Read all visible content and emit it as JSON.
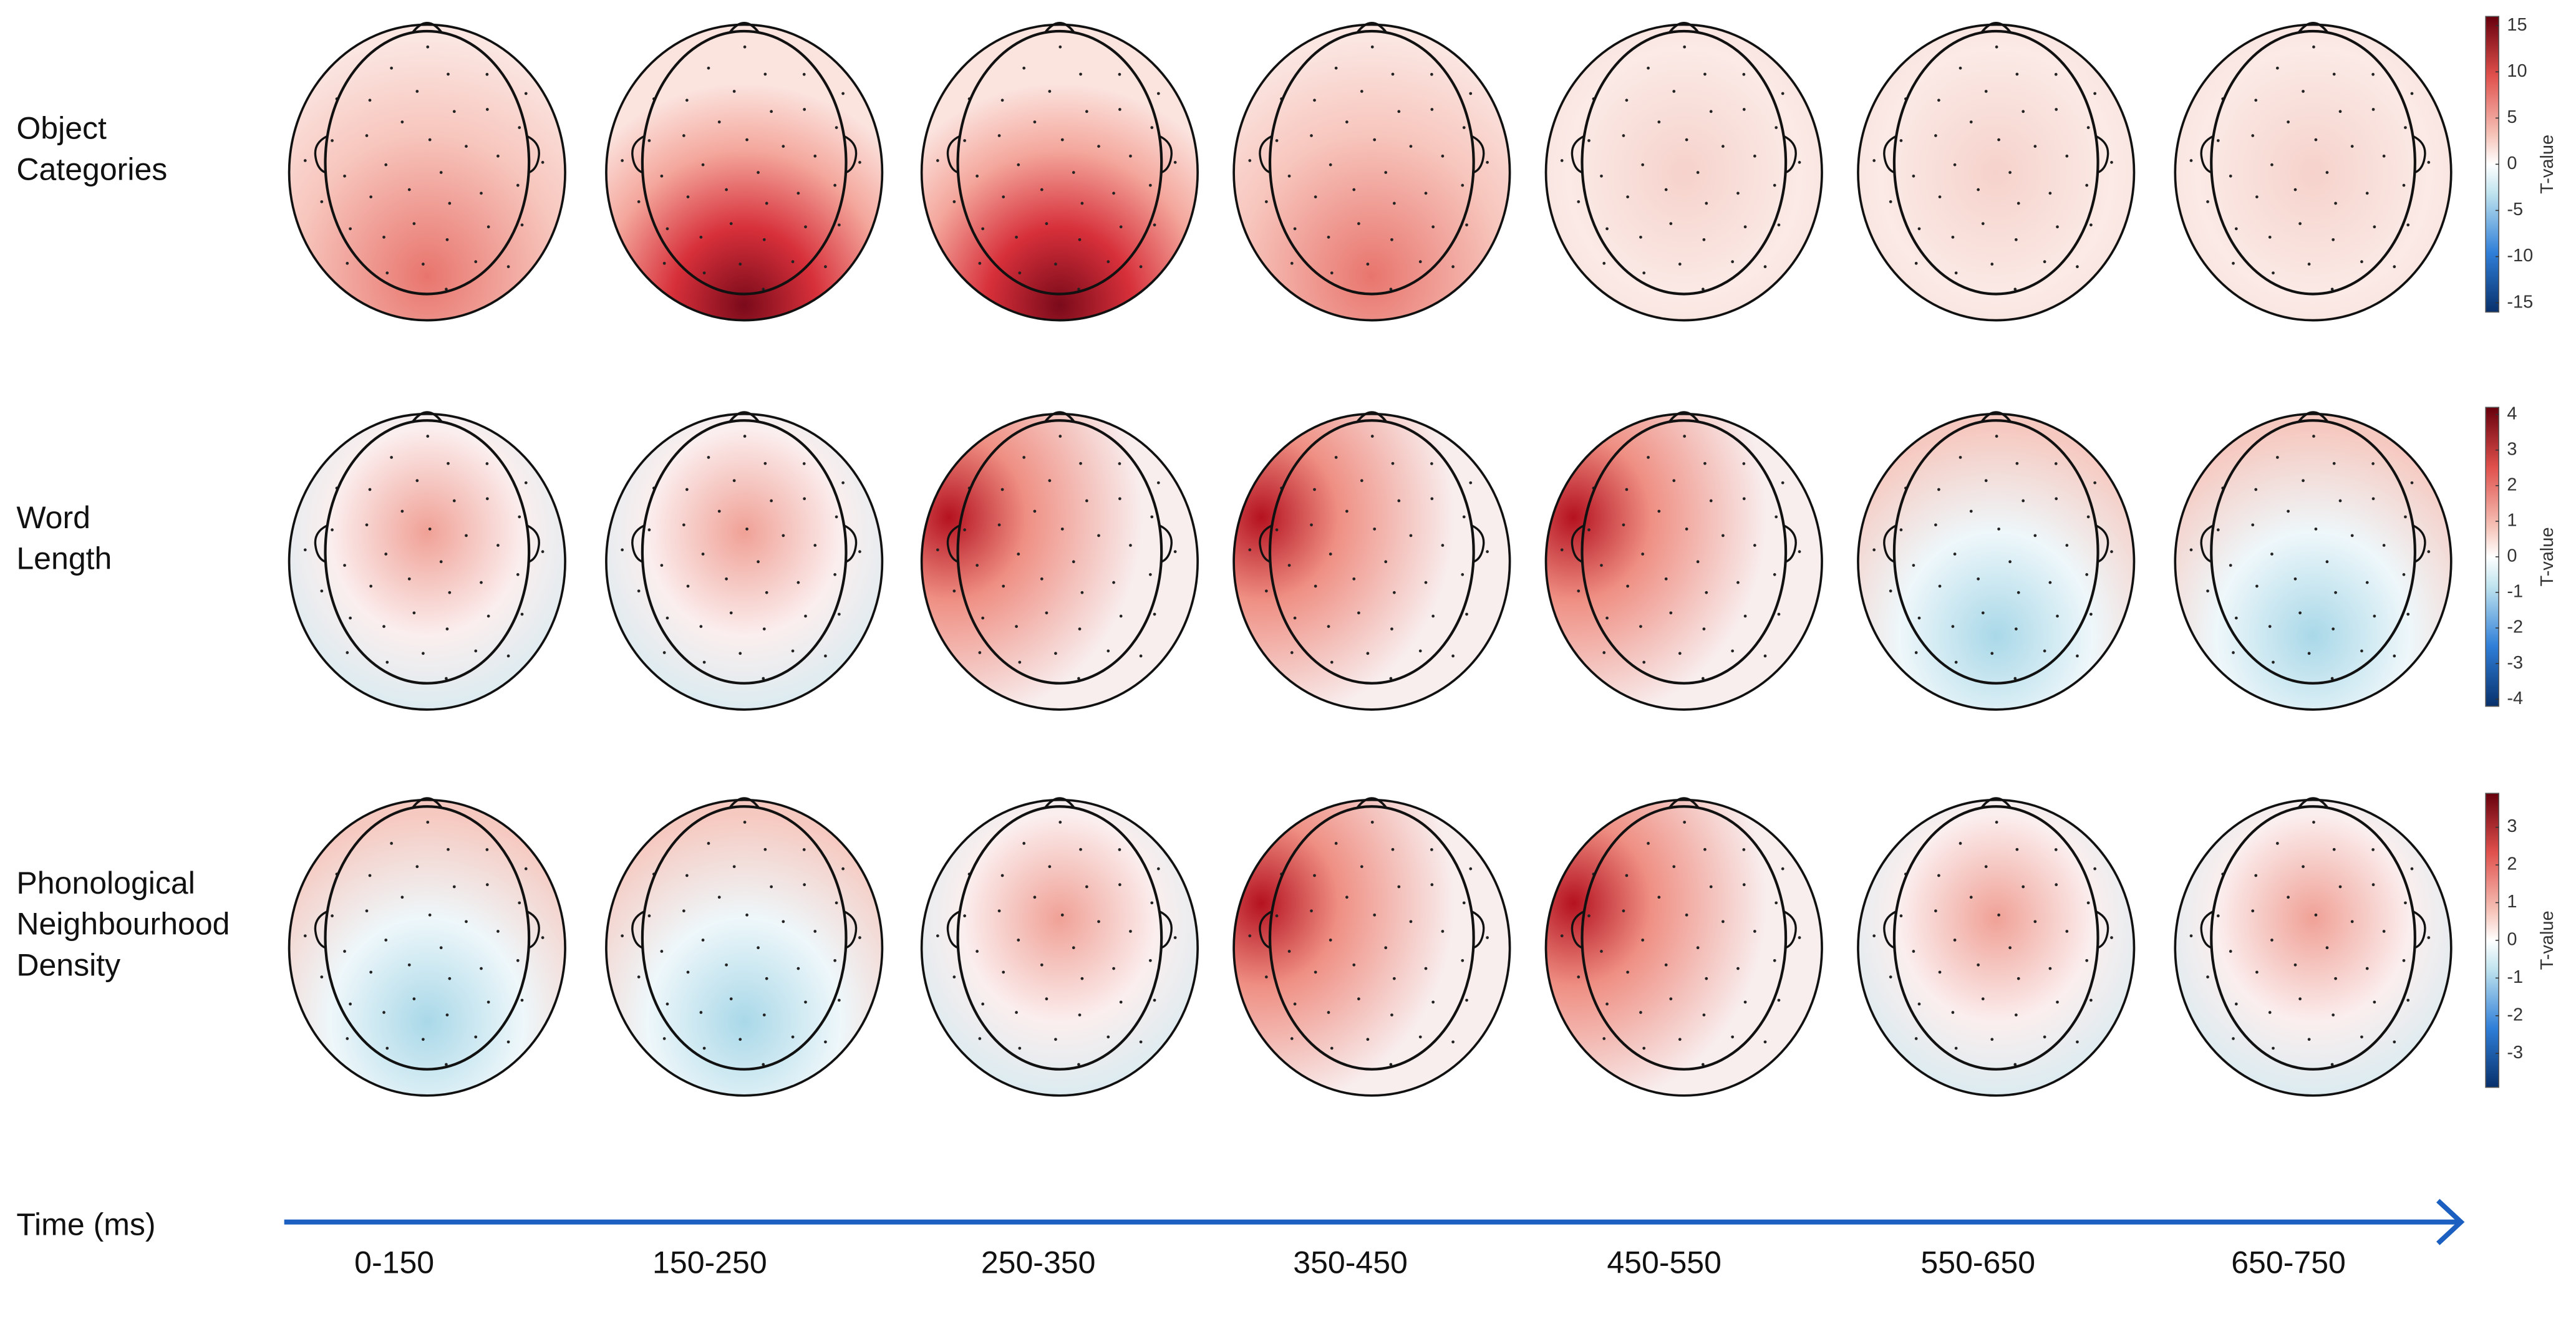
{
  "rows": [
    {
      "label_lines": [
        "Object",
        "Categories"
      ],
      "colorbar": {
        "label": "T-value",
        "lim": [
          -16,
          16
        ],
        "ticks": [
          -15,
          -10,
          -5,
          0,
          5,
          10,
          15
        ]
      }
    },
    {
      "label_lines": [
        "Word",
        "Length"
      ],
      "colorbar": {
        "label": "T-value",
        "lim": [
          -4.2,
          4.2
        ],
        "ticks": [
          -4,
          -3,
          -2,
          -1,
          0,
          1,
          2,
          3,
          4
        ]
      }
    },
    {
      "label_lines": [
        "Phonological",
        "Neighbourhood",
        "Density"
      ],
      "colorbar": {
        "label": "T-value",
        "lim": [
          -3.9,
          3.9
        ],
        "ticks": [
          -3,
          -2,
          -1,
          0,
          1,
          2,
          3
        ]
      }
    }
  ],
  "time_axis": {
    "label": "Time (ms)",
    "windows": [
      "0-150",
      "150-250",
      "250-350",
      "350-450",
      "450-550",
      "550-650",
      "650-750"
    ]
  }
}
